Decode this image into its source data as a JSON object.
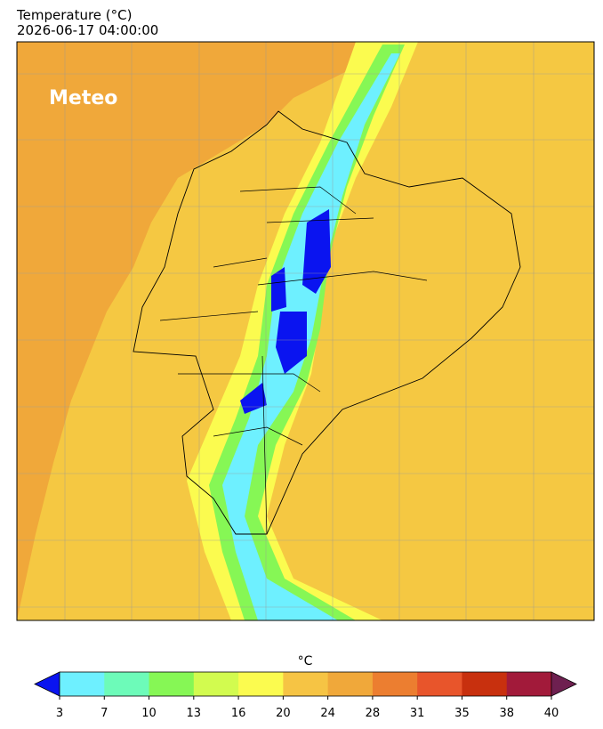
{
  "title": "Temperature (°C)",
  "timestamp": "2026-06-17 04:00:00",
  "logo": "Meteo",
  "colorbar": {
    "label": "°C",
    "ticks": [
      3,
      7,
      10,
      13,
      16,
      20,
      24,
      28,
      31,
      35,
      38,
      40
    ],
    "colors": [
      "#6ef0ff",
      "#6dfbb9",
      "#86f755",
      "#d2fb4f",
      "#fbfb4f",
      "#f6c444",
      "#f0a83a",
      "#ec7e30",
      "#e8552b",
      "#c8300e",
      "#a21a3a"
    ],
    "under_color": "#0a14f0",
    "over_color": "#6e2050"
  }
}
